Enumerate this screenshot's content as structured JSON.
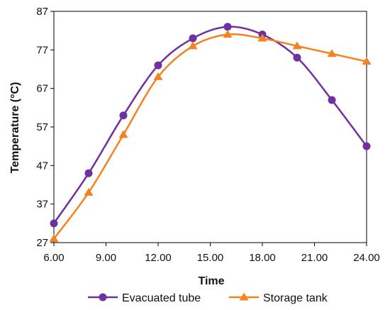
{
  "chart_data": {
    "type": "line",
    "xlabel": "Time",
    "ylabel": "Temperature (°C)",
    "xlim": [
      6,
      24
    ],
    "ylim": [
      27,
      87
    ],
    "x_ticks": [
      6,
      9,
      12,
      15,
      18,
      21,
      24
    ],
    "x_tick_labels": [
      "6.00",
      "9.00",
      "12.00",
      "15.00",
      "18.00",
      "21.00",
      "24.00"
    ],
    "y_ticks": [
      27,
      37,
      47,
      57,
      67,
      77,
      87
    ],
    "y_tick_labels": [
      "27",
      "37",
      "47",
      "57",
      "67",
      "77",
      "87"
    ],
    "grid": false,
    "legend_position": "bottom",
    "x": [
      6,
      8,
      10,
      12,
      14,
      16,
      18,
      20,
      22,
      24
    ],
    "series": [
      {
        "name": "Evacuated tube",
        "color": "#7030A0",
        "marker": "circle",
        "values": [
          32,
          45,
          60,
          73,
          80,
          83,
          81,
          75,
          64,
          52
        ]
      },
      {
        "name": "Storage tank",
        "color": "#F58220",
        "marker": "triangle",
        "values": [
          28,
          40,
          55,
          70,
          78,
          81,
          80,
          78,
          76,
          74
        ]
      }
    ]
  }
}
